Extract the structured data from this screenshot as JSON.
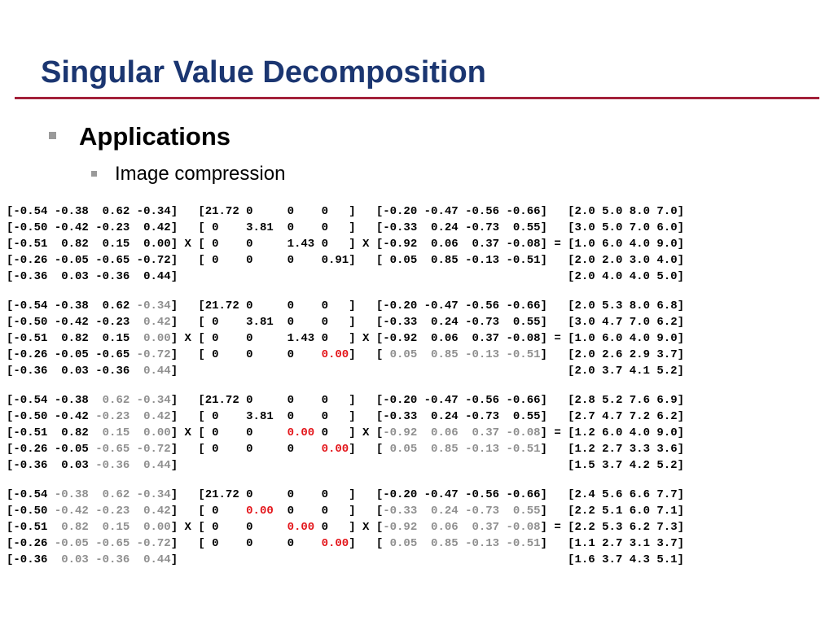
{
  "title": "Singular Value Decomposition",
  "bullets": {
    "level1": "Applications",
    "level2": "Image compression"
  },
  "colors": {
    "title": "#1b3671",
    "rule": "#a3213a",
    "zeroed": "#e3151a",
    "dimmed": "#8f8f8f"
  },
  "blocks": [
    {
      "U": [
        [
          "-0.54",
          "-0.38",
          " 0.62",
          "-0.34"
        ],
        [
          "-0.50",
          "-0.42",
          "-0.23",
          " 0.42"
        ],
        [
          "-0.51",
          " 0.82",
          " 0.15",
          " 0.00"
        ],
        [
          "-0.26",
          "-0.05",
          "-0.65",
          "-0.72"
        ],
        [
          "-0.36",
          " 0.03",
          "-0.36",
          " 0.44"
        ]
      ],
      "U_dim_from_col": 4,
      "S": [
        [
          "21.72",
          "0    ",
          "0   ",
          "0   "
        ],
        [
          " 0   ",
          "3.81 ",
          "0   ",
          "0   "
        ],
        [
          " 0   ",
          "0    ",
          "1.43",
          "0   "
        ],
        [
          " 0   ",
          "0    ",
          "0   ",
          "0.91"
        ]
      ],
      "S_red": [],
      "V": [
        [
          "-0.20",
          "-0.47",
          "-0.56",
          "-0.66"
        ],
        [
          "-0.33",
          " 0.24",
          "-0.73",
          " 0.55"
        ],
        [
          "-0.92",
          " 0.06",
          " 0.37",
          "-0.08"
        ],
        [
          " 0.05",
          " 0.85",
          "-0.13",
          "-0.51"
        ]
      ],
      "V_dim_from_row": 4,
      "R": [
        [
          "2.0",
          "5.0",
          "8.0",
          "7.0"
        ],
        [
          "3.0",
          "5.0",
          "7.0",
          "6.0"
        ],
        [
          "1.0",
          "6.0",
          "4.0",
          "9.0"
        ],
        [
          "2.0",
          "2.0",
          "3.0",
          "4.0"
        ],
        [
          "2.0",
          "4.0",
          "4.0",
          "5.0"
        ]
      ]
    },
    {
      "U": [
        [
          "-0.54",
          "-0.38",
          " 0.62",
          "-0.34"
        ],
        [
          "-0.50",
          "-0.42",
          "-0.23",
          " 0.42"
        ],
        [
          "-0.51",
          " 0.82",
          " 0.15",
          " 0.00"
        ],
        [
          "-0.26",
          "-0.05",
          "-0.65",
          "-0.72"
        ],
        [
          "-0.36",
          " 0.03",
          "-0.36",
          " 0.44"
        ]
      ],
      "U_dim_from_col": 3,
      "S": [
        [
          "21.72",
          "0    ",
          "0   ",
          "0   "
        ],
        [
          " 0   ",
          "3.81 ",
          "0   ",
          "0   "
        ],
        [
          " 0   ",
          "0    ",
          "1.43",
          "0   "
        ],
        [
          " 0   ",
          "0    ",
          "0   ",
          "0.00"
        ]
      ],
      "S_red": [
        3
      ],
      "V": [
        [
          "-0.20",
          "-0.47",
          "-0.56",
          "-0.66"
        ],
        [
          "-0.33",
          " 0.24",
          "-0.73",
          " 0.55"
        ],
        [
          "-0.92",
          " 0.06",
          " 0.37",
          "-0.08"
        ],
        [
          " 0.05",
          " 0.85",
          "-0.13",
          "-0.51"
        ]
      ],
      "V_dim_from_row": 3,
      "R": [
        [
          "2.0",
          "5.3",
          "8.0",
          "6.8"
        ],
        [
          "3.0",
          "4.7",
          "7.0",
          "6.2"
        ],
        [
          "1.0",
          "6.0",
          "4.0",
          "9.0"
        ],
        [
          "2.0",
          "2.6",
          "2.9",
          "3.7"
        ],
        [
          "2.0",
          "3.7",
          "4.1",
          "5.2"
        ]
      ]
    },
    {
      "U": [
        [
          "-0.54",
          "-0.38",
          " 0.62",
          "-0.34"
        ],
        [
          "-0.50",
          "-0.42",
          "-0.23",
          " 0.42"
        ],
        [
          "-0.51",
          " 0.82",
          " 0.15",
          " 0.00"
        ],
        [
          "-0.26",
          "-0.05",
          "-0.65",
          "-0.72"
        ],
        [
          "-0.36",
          " 0.03",
          "-0.36",
          " 0.44"
        ]
      ],
      "U_dim_from_col": 2,
      "S": [
        [
          "21.72",
          "0    ",
          "0   ",
          "0   "
        ],
        [
          " 0   ",
          "3.81 ",
          "0   ",
          "0   "
        ],
        [
          " 0   ",
          "0    ",
          "0.00",
          "0   "
        ],
        [
          " 0   ",
          "0    ",
          "0   ",
          "0.00"
        ]
      ],
      "S_red": [
        2,
        3
      ],
      "V": [
        [
          "-0.20",
          "-0.47",
          "-0.56",
          "-0.66"
        ],
        [
          "-0.33",
          " 0.24",
          "-0.73",
          " 0.55"
        ],
        [
          "-0.92",
          " 0.06",
          " 0.37",
          "-0.08"
        ],
        [
          " 0.05",
          " 0.85",
          "-0.13",
          "-0.51"
        ]
      ],
      "V_dim_from_row": 2,
      "R": [
        [
          "2.8",
          "5.2",
          "7.6",
          "6.9"
        ],
        [
          "2.7",
          "4.7",
          "7.2",
          "6.2"
        ],
        [
          "1.2",
          "6.0",
          "4.0",
          "9.0"
        ],
        [
          "1.2",
          "2.7",
          "3.3",
          "3.6"
        ],
        [
          "1.5",
          "3.7",
          "4.2",
          "5.2"
        ]
      ]
    },
    {
      "U": [
        [
          "-0.54",
          "-0.38",
          " 0.62",
          "-0.34"
        ],
        [
          "-0.50",
          "-0.42",
          "-0.23",
          " 0.42"
        ],
        [
          "-0.51",
          " 0.82",
          " 0.15",
          " 0.00"
        ],
        [
          "-0.26",
          "-0.05",
          "-0.65",
          "-0.72"
        ],
        [
          "-0.36",
          " 0.03",
          "-0.36",
          " 0.44"
        ]
      ],
      "U_dim_from_col": 1,
      "S": [
        [
          "21.72",
          "0    ",
          "0   ",
          "0   "
        ],
        [
          " 0   ",
          "0.00 ",
          "0   ",
          "0   "
        ],
        [
          " 0   ",
          "0    ",
          "0.00",
          "0   "
        ],
        [
          " 0   ",
          "0    ",
          "0   ",
          "0.00"
        ]
      ],
      "S_red": [
        1,
        2,
        3
      ],
      "V": [
        [
          "-0.20",
          "-0.47",
          "-0.56",
          "-0.66"
        ],
        [
          "-0.33",
          " 0.24",
          "-0.73",
          " 0.55"
        ],
        [
          "-0.92",
          " 0.06",
          " 0.37",
          "-0.08"
        ],
        [
          " 0.05",
          " 0.85",
          "-0.13",
          "-0.51"
        ]
      ],
      "V_dim_from_row": 1,
      "R": [
        [
          "2.4",
          "5.6",
          "6.6",
          "7.7"
        ],
        [
          "2.2",
          "5.1",
          "6.0",
          "7.1"
        ],
        [
          "2.2",
          "5.3",
          "6.2",
          "7.3"
        ],
        [
          "1.1",
          "2.7",
          "3.1",
          "3.7"
        ],
        [
          "1.6",
          "3.7",
          "4.3",
          "5.1"
        ]
      ]
    }
  ],
  "operators": {
    "multiply": "X",
    "equals": "="
  }
}
